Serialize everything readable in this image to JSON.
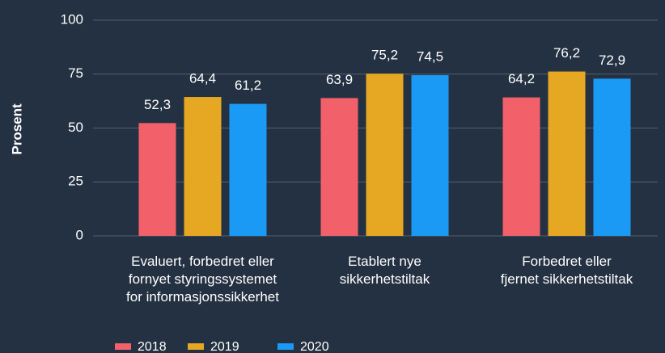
{
  "chart_data": {
    "type": "bar",
    "y_label": "Prosent",
    "categories": [
      "Evaluert, forbedret eller\nfornyet styringssystemet\nfor informasjonssikkerhet",
      "Etablert nye\nsikkerhetstiltak",
      "Forbedret eller\nfjernet sikkerhetstiltak"
    ],
    "series": [
      {
        "name": "2018",
        "color": "#f2616a",
        "values": [
          52.3,
          63.9,
          64.2
        ],
        "value_labels": [
          "52,3",
          "63,9",
          "64,2"
        ]
      },
      {
        "name": "2019",
        "color": "#e6a822",
        "values": [
          64.4,
          75.2,
          76.2
        ],
        "value_labels": [
          "64,4",
          "75,2",
          "76,2"
        ]
      },
      {
        "name": "2020",
        "color": "#1b9af5",
        "values": [
          61.2,
          74.5,
          72.9
        ],
        "value_labels": [
          "61,2",
          "74,5",
          "72,9"
        ]
      }
    ],
    "ylim": [
      0,
      100
    ],
    "yticks": [
      0,
      25,
      50,
      75,
      100
    ],
    "grid": true
  }
}
